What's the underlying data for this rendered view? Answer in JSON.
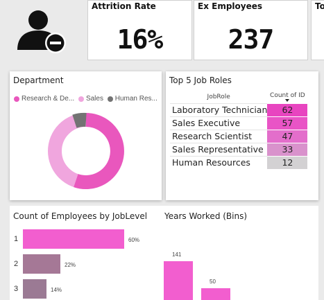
{
  "kpis": {
    "attrition": {
      "title": "Attrition Rate",
      "value": "16%"
    },
    "ex_employees": {
      "title": "Ex Employees",
      "value": "237"
    },
    "cut_off": {
      "title": "To"
    }
  },
  "department": {
    "title": "Department",
    "legend": [
      "Research & De...",
      "Sales",
      "Human Res..."
    ],
    "colors": {
      "research": "#e957bd",
      "sales": "#f0a6de",
      "hr": "#737373"
    }
  },
  "job_roles": {
    "title": "Top 5 Job Roles",
    "col_role": "JobRole",
    "col_count": "Count of ID",
    "rows": [
      {
        "role": "Laboratory Technician",
        "count": "62",
        "color": "#e845c0"
      },
      {
        "role": "Sales Executive",
        "count": "57",
        "color": "#e954c6"
      },
      {
        "role": "Research Scientist",
        "count": "47",
        "color": "#e36ecb"
      },
      {
        "role": "Sales Representative",
        "count": "33",
        "color": "#d992cc"
      },
      {
        "role": "Human Resources",
        "count": "12",
        "color": "#d3d1d3"
      }
    ]
  },
  "joblevel": {
    "title": "Count of Employees by JobLevel",
    "chart_data": {
      "type": "bar",
      "orientation": "horizontal",
      "categories": [
        "1",
        "2",
        "3"
      ],
      "values": [
        60,
        22,
        14
      ],
      "labels": [
        "60%",
        "22%",
        "14%"
      ],
      "colors": [
        "#f25ecf",
        "#a57896",
        "#9b7a94"
      ]
    }
  },
  "years": {
    "title": "Years Worked (Bins)",
    "chart_data": {
      "type": "bar",
      "values": [
        141,
        50
      ],
      "labels": [
        "141",
        "50"
      ],
      "color": "#f25ecf"
    }
  }
}
